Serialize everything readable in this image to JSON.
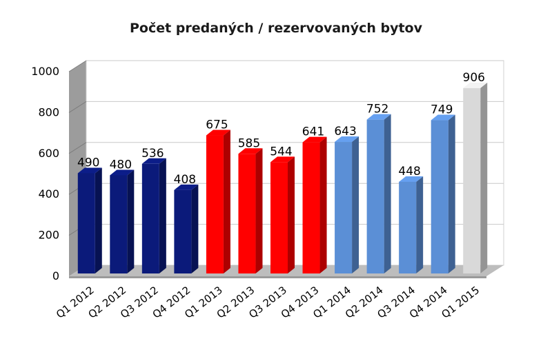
{
  "chart_data": {
    "type": "bar",
    "title": "Počet predaných / rezervovaných bytov",
    "categories": [
      "Q1 2012",
      "Q2 2012",
      "Q3 2012",
      "Q4 2012",
      "Q1 2013",
      "Q2 2013",
      "Q3 2013",
      "Q4 2013",
      "Q1 2014",
      "Q2 2014",
      "Q3 2014",
      "Q4 2014",
      "Q1 2015"
    ],
    "values": [
      490,
      480,
      536,
      408,
      675,
      585,
      544,
      641,
      643,
      752,
      448,
      749,
      906
    ],
    "bar_colors": [
      "#0b1a7a",
      "#0b1a7a",
      "#0b1a7a",
      "#0b1a7a",
      "#ff0000",
      "#ff0000",
      "#ff0000",
      "#ff0000",
      "#5b8fd6",
      "#5b8fd6",
      "#5b8fd6",
      "#5b8fd6",
      "#d9d9d9"
    ],
    "ylim": [
      0,
      1000
    ],
    "yticks": [
      0,
      200,
      400,
      600,
      800,
      1000
    ],
    "xlabel": "",
    "ylabel": "",
    "grid": true,
    "style": "3d-column",
    "legend": "none"
  }
}
